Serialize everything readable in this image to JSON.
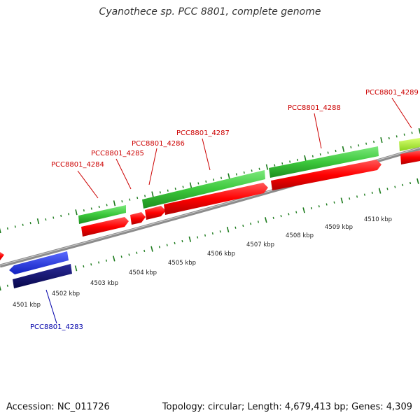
{
  "title": "Cyanothece sp. PCC 8801, complete genome",
  "footer": {
    "accession": "Accession: NC_011726",
    "stats": "Topology: circular; Length: 4,679,413 bp; Genes: 4,309"
  },
  "colors": {
    "forward_gene": "#ff1a1a",
    "forward_gene_alt": "#3cc83c",
    "reverse_gene": "#1f2fe0",
    "reverse_gene_alt": "#0a0a6e",
    "label_forward": "#cc0000",
    "label_reverse": "#0000aa",
    "backbone": "#8c8c8c",
    "tick": "#1a7a1a"
  },
  "scale_labels": [
    "4501 kbp",
    "4502 kbp",
    "4503 kbp",
    "4504 kbp",
    "4505 kbp",
    "4506 kbp",
    "4507 kbp",
    "4508 kbp",
    "4509 kbp",
    "4510 kbp"
  ],
  "gene_labels": [
    {
      "text": "PCC8801_4283",
      "strand": "reverse"
    },
    {
      "text": "PCC8801_4284",
      "strand": "forward"
    },
    {
      "text": "PCC8801_4285",
      "strand": "forward"
    },
    {
      "text": "PCC8801_4286",
      "strand": "forward"
    },
    {
      "text": "PCC8801_4287",
      "strand": "forward"
    },
    {
      "text": "PCC8801_4288",
      "strand": "forward"
    },
    {
      "text": "PCC8801_4289",
      "strand": "forward"
    }
  ]
}
